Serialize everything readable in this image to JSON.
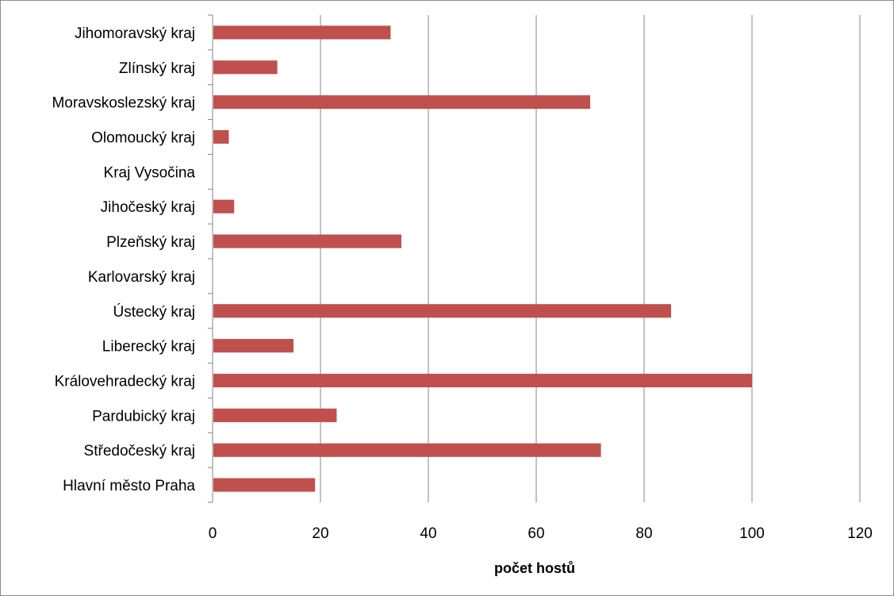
{
  "chart_data": {
    "type": "bar",
    "orientation": "horizontal",
    "categories": [
      "Jihomoravský kraj",
      "Zlínský kraj",
      "Moravskoslezský kraj",
      "Olomoucký kraj",
      "Kraj Vysočina",
      "Jihočeský kraj",
      "Plzeňský kraj",
      "Karlovarský kraj",
      "Ústecký kraj",
      "Liberecký kraj",
      "Královehradecký kraj",
      "Pardubický kraj",
      "Středočeský kraj",
      "Hlavní město Praha"
    ],
    "values": [
      33,
      12,
      70,
      3,
      0,
      4,
      35,
      0,
      85,
      15,
      100,
      23,
      72,
      19
    ],
    "xlabel": "počet hostů",
    "ylabel": "",
    "xlim": [
      0,
      120
    ],
    "xticks": [
      0,
      20,
      40,
      60,
      80,
      100,
      120
    ],
    "xtick_labels": [
      "0",
      "20",
      "40",
      "60",
      "80",
      "100",
      "120"
    ],
    "grid": "vertical major gridlines",
    "legend": "none",
    "bar_color": "#c0504d",
    "gridline_color": "#868686"
  }
}
